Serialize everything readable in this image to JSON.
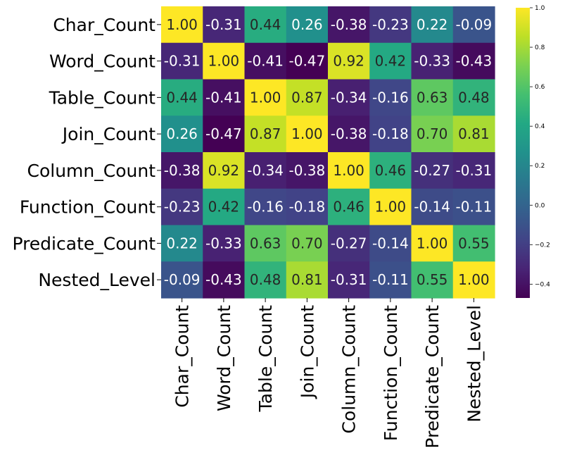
{
  "chart_data": {
    "type": "heatmap",
    "title": "",
    "colormap": "viridis",
    "value_format": "2 decimals",
    "row_labels": [
      "Char_Count",
      "Word_Count",
      "Table_Count",
      "Join_Count",
      "Column_Count",
      "Function_Count",
      "Predicate_Count",
      "Nested_Level"
    ],
    "col_labels": [
      "Char_Count",
      "Word_Count",
      "Table_Count",
      "Join_Count",
      "Column_Count",
      "Function_Count",
      "Predicate_Count",
      "Nested_Level"
    ],
    "values": [
      [
        1.0,
        -0.31,
        0.44,
        0.26,
        -0.38,
        -0.23,
        0.22,
        -0.09
      ],
      [
        -0.31,
        1.0,
        -0.41,
        -0.47,
        0.92,
        0.42,
        -0.33,
        -0.43
      ],
      [
        0.44,
        -0.41,
        1.0,
        0.87,
        -0.34,
        -0.16,
        0.63,
        0.48
      ],
      [
        0.26,
        -0.47,
        0.87,
        1.0,
        -0.38,
        -0.18,
        0.7,
        0.81
      ],
      [
        -0.38,
        0.92,
        -0.34,
        -0.38,
        1.0,
        0.46,
        -0.27,
        -0.31
      ],
      [
        -0.23,
        0.42,
        -0.16,
        -0.18,
        0.46,
        1.0,
        -0.14,
        -0.11
      ],
      [
        0.22,
        -0.33,
        0.63,
        0.7,
        -0.27,
        -0.14,
        1.0,
        0.55
      ],
      [
        -0.09,
        -0.43,
        0.48,
        0.81,
        -0.31,
        -0.11,
        0.55,
        1.0
      ]
    ],
    "colorbar": {
      "vmin": -0.47,
      "vmax": 1.0,
      "ticks": [
        1.0,
        0.8,
        0.6,
        0.4,
        0.2,
        0.0,
        -0.2,
        -0.4
      ],
      "tick_labels": [
        "1.0",
        "0.8",
        "0.6",
        "0.4",
        "0.2",
        "0.0",
        "−0.2",
        "−0.4"
      ]
    }
  }
}
